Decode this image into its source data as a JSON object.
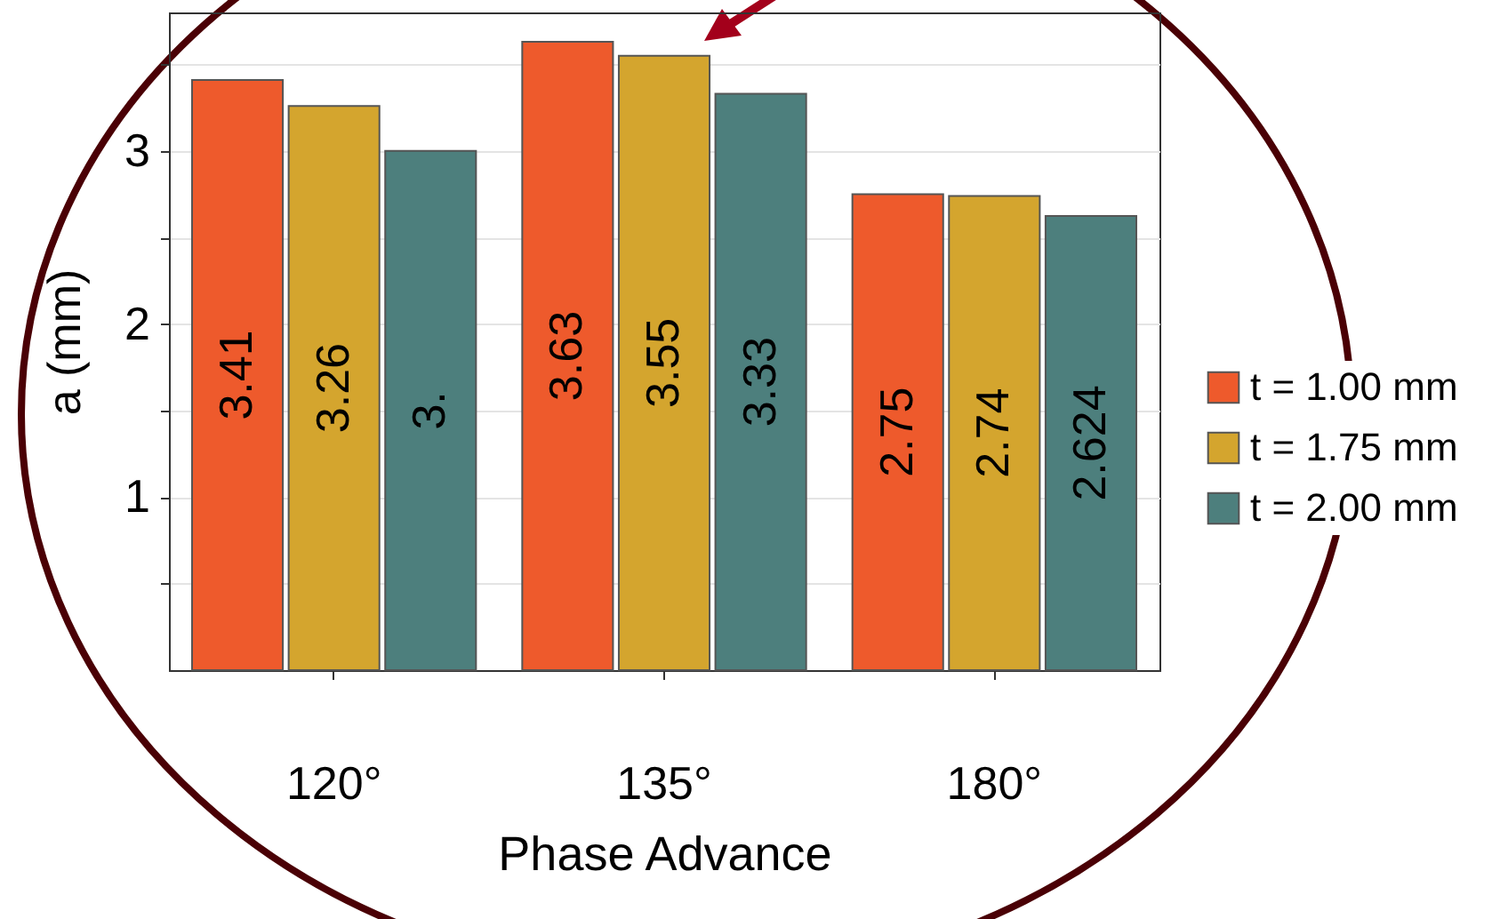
{
  "chart_data": {
    "type": "bar",
    "xlabel": "Phase Advance",
    "ylabel": "a (mm)",
    "categories": [
      "120°",
      "135°",
      "180°"
    ],
    "series": [
      {
        "name": "t = 1.00 mm",
        "color": "#ee5a2c",
        "values": [
          3.41,
          3.63,
          2.75
        ],
        "value_labels": [
          "3.41",
          "3.63",
          "2.75"
        ]
      },
      {
        "name": "t = 1.75 mm",
        "color": "#d4a52e",
        "values": [
          3.26,
          3.55,
          2.74
        ],
        "value_labels": [
          "3.26",
          "3.55",
          "2.74"
        ]
      },
      {
        "name": "t = 2.00 mm",
        "color": "#4d7f7d",
        "values": [
          3,
          3.33,
          2.624
        ],
        "value_labels": [
          "3.",
          "3.33",
          "2.624"
        ]
      }
    ],
    "ylim": [
      0,
      3.8
    ],
    "yticks": [
      {
        "value": 0.5,
        "label": null
      },
      1,
      {
        "value": 1.5,
        "label": null
      },
      2,
      {
        "value": 2.5,
        "label": null
      },
      3,
      {
        "value": 3.5,
        "label": null
      }
    ],
    "grid": "y",
    "legend": "right"
  }
}
